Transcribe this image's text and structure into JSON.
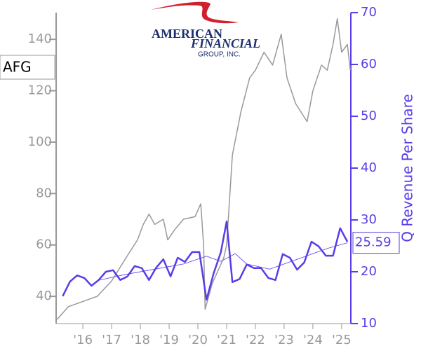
{
  "chart_data": {
    "type": "line",
    "logo": {
      "line1": "AMERICAN",
      "line2": "FINANCIAL",
      "line3": "GROUP, INC."
    },
    "xlim": [
      2015.07,
      2025.32
    ],
    "xticks": [
      {
        "value": 2016,
        "label": "'16"
      },
      {
        "value": 2017,
        "label": "'17"
      },
      {
        "value": 2018,
        "label": "'18"
      },
      {
        "value": 2019,
        "label": "'19"
      },
      {
        "value": 2020,
        "label": "'20"
      },
      {
        "value": 2021,
        "label": "'21"
      },
      {
        "value": 2022,
        "label": "'22"
      },
      {
        "value": 2023,
        "label": "'23"
      },
      {
        "value": 2024,
        "label": "'24"
      },
      {
        "value": 2025,
        "label": "'25"
      }
    ],
    "ylim": [
      29.4,
      150.4
    ],
    "yticks": [
      40,
      60,
      80,
      100,
      120,
      140
    ],
    "y2lim": [
      10,
      70
    ],
    "y2ticks": [
      10,
      20,
      30,
      40,
      50,
      60,
      70
    ],
    "current_value": 25.59,
    "series": [
      {
        "name": "AFG",
        "color": "#999999",
        "x": [
          2015.1,
          2015.5,
          2016.0,
          2016.5,
          2017.0,
          2017.5,
          2017.9,
          2018.1,
          2018.3,
          2018.5,
          2018.8,
          2018.95,
          2019.2,
          2019.5,
          2019.9,
          2020.1,
          2020.2,
          2020.25,
          2020.5,
          2020.9,
          2021.0,
          2021.2,
          2021.5,
          2021.8,
          2022.0,
          2022.3,
          2022.6,
          2022.9,
          2023.1,
          2023.4,
          2023.8,
          2024.0,
          2024.3,
          2024.5,
          2024.7,
          2024.85,
          2025.0,
          2025.2,
          2025.3
        ],
        "values": [
          31,
          36,
          38,
          40,
          46,
          55,
          62,
          68,
          72,
          68,
          70,
          62,
          66,
          70,
          71,
          76,
          60,
          35,
          45,
          55,
          60,
          95,
          112,
          125,
          128,
          135,
          130,
          142,
          125,
          115,
          108,
          120,
          130,
          128,
          138,
          148,
          135,
          138,
          128
        ]
      },
      {
        "name": "Q Revenue Per Share",
        "color": "#5b3ce8",
        "axis": "y2",
        "x": [
          2015.3,
          2015.55,
          2015.8,
          2016.05,
          2016.3,
          2016.55,
          2016.8,
          2017.05,
          2017.3,
          2017.55,
          2017.8,
          2018.05,
          2018.3,
          2018.55,
          2018.8,
          2019.05,
          2019.3,
          2019.55,
          2019.8,
          2020.05,
          2020.3,
          2020.55,
          2020.8,
          2021.0,
          2021.2,
          2021.45,
          2021.7,
          2021.95,
          2022.2,
          2022.45,
          2022.7,
          2022.95,
          2023.2,
          2023.45,
          2023.7,
          2023.95,
          2024.2,
          2024.45,
          2024.7,
          2024.95,
          2025.2
        ],
        "values": [
          15.3,
          18.1,
          19.3,
          18.8,
          17.3,
          18.4,
          20.0,
          20.3,
          18.4,
          19.1,
          21.1,
          20.7,
          18.4,
          20.8,
          22.4,
          19.1,
          22.7,
          21.9,
          23.8,
          23.8,
          14.6,
          19.7,
          23.8,
          29.7,
          18.0,
          18.6,
          21.4,
          20.7,
          20.7,
          18.8,
          18.4,
          23.4,
          22.7,
          20.4,
          21.8,
          25.8,
          24.9,
          23.1,
          23.1,
          28.4,
          25.8
        ]
      },
      {
        "color": "#5b3ce8",
        "axis": "y2",
        "x": [
          2016.5,
          2017.5,
          2018.5,
          2019.5,
          2020.3,
          2020.8,
          2021.3,
          2021.7,
          2022.5,
          2023.5,
          2024.5,
          2025.2
        ],
        "values": [
          18.3,
          19.5,
          20.5,
          21.5,
          23.0,
          22.0,
          23.5,
          21.5,
          20.5,
          22.5,
          24.5,
          25.59
        ]
      }
    ]
  }
}
